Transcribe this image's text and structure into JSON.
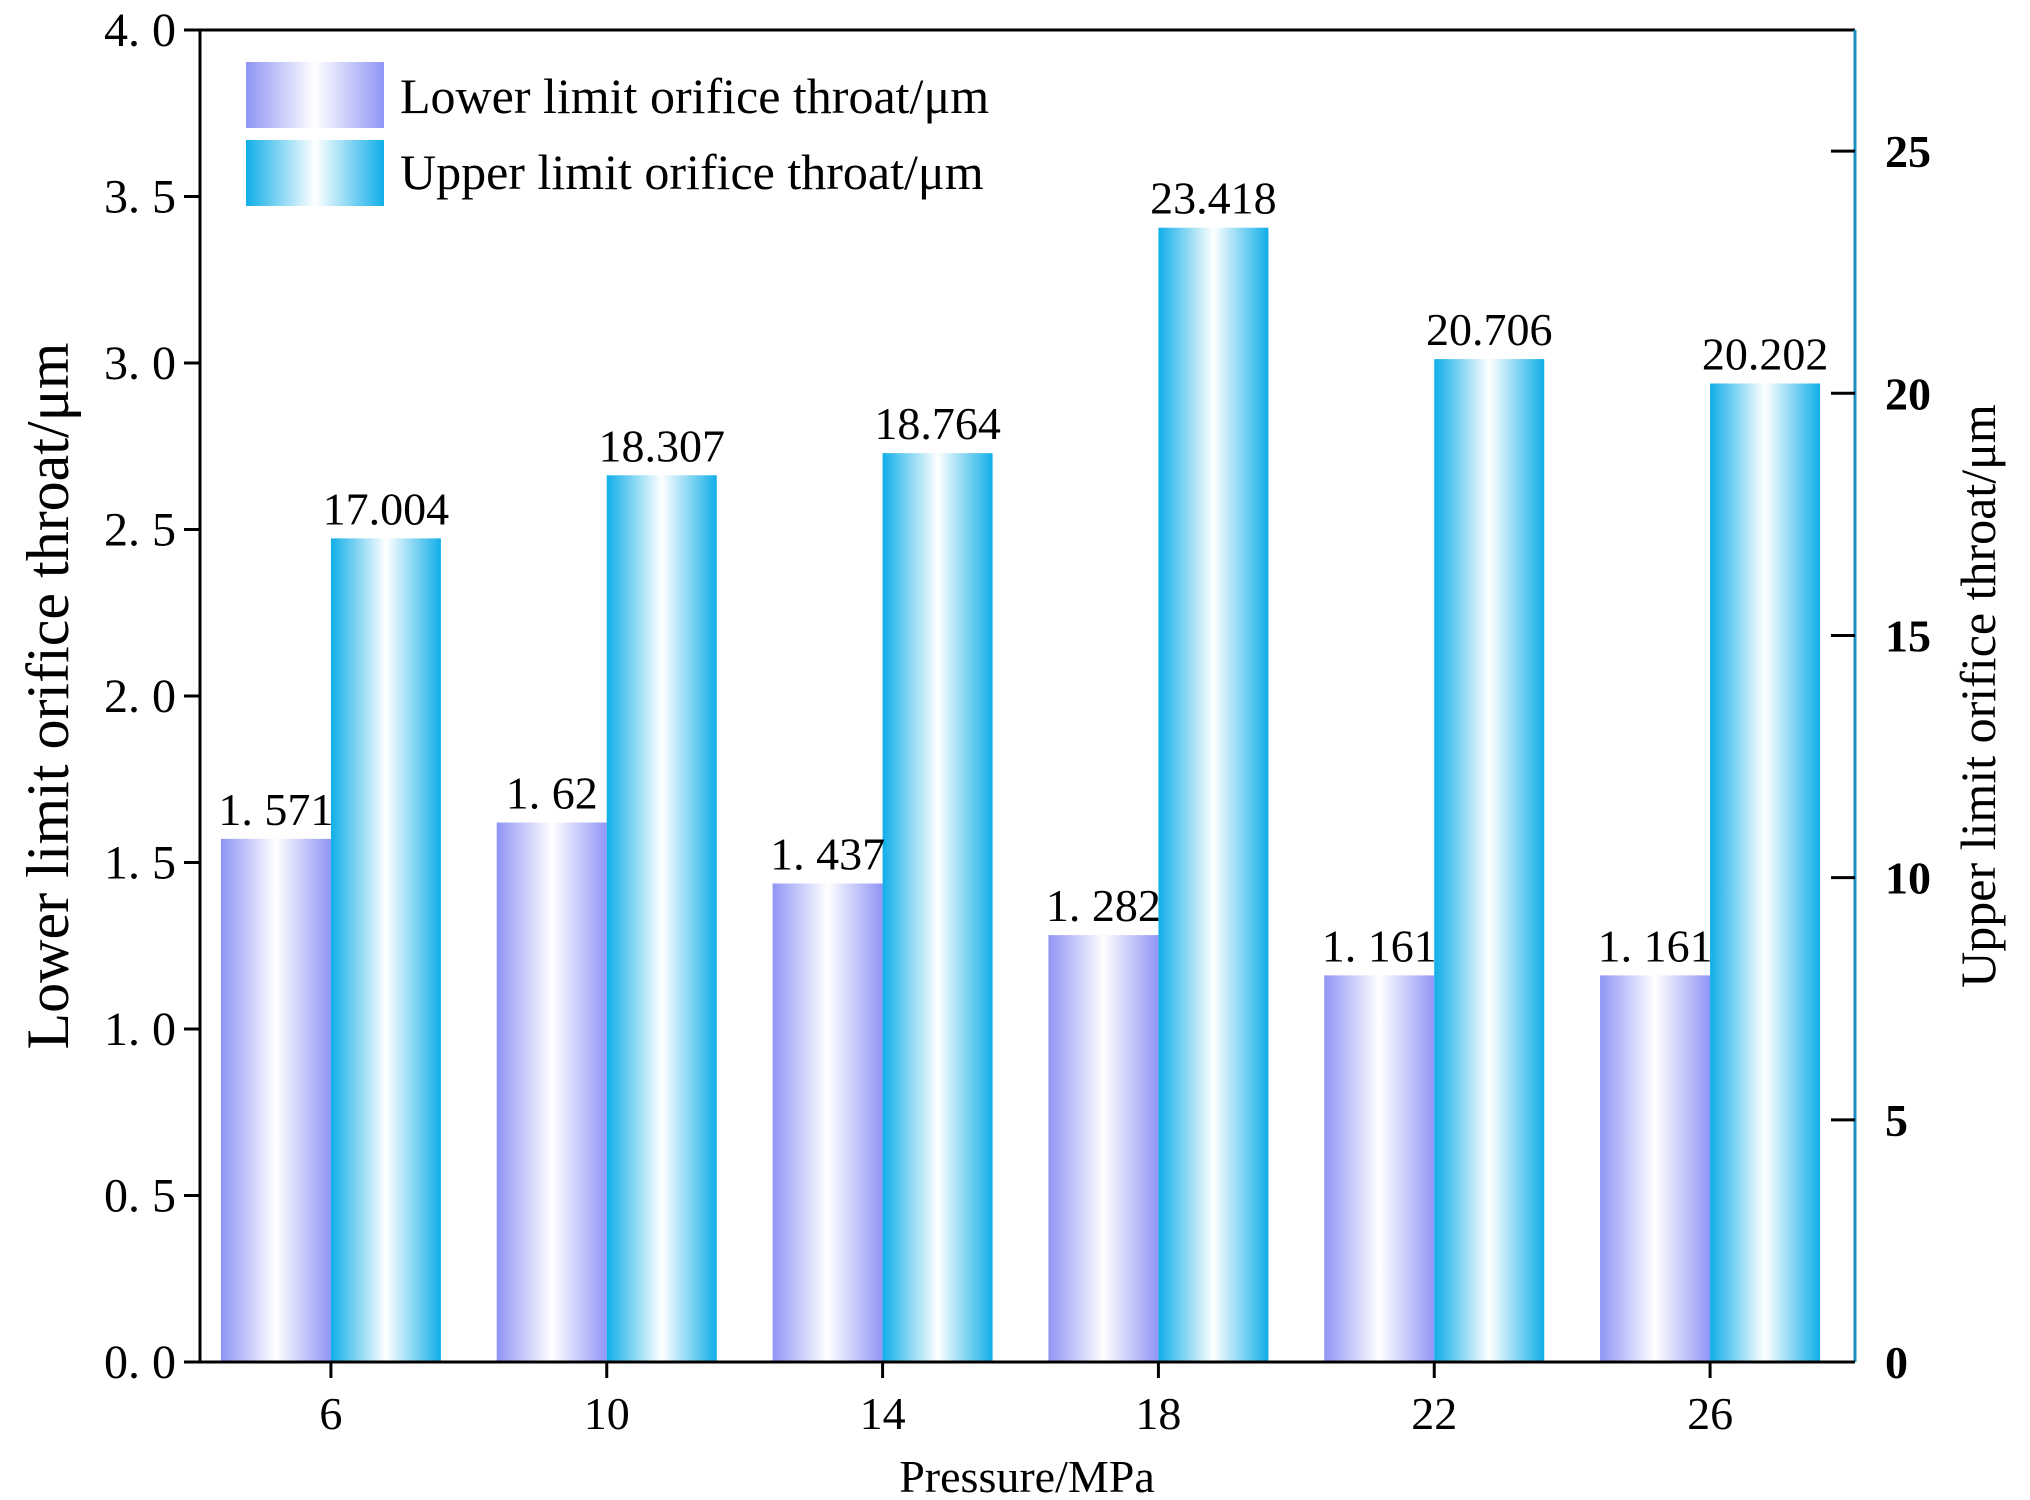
{
  "chart_data": {
    "type": "bar",
    "categories": [
      "6",
      "10",
      "14",
      "18",
      "22",
      "26"
    ],
    "xlabel": "Pressure/MPa",
    "series": [
      {
        "name": "Lower limit orifice throat/μm",
        "axis": "left",
        "values": [
          1.571,
          1.62,
          1.437,
          1.282,
          1.161,
          1.161
        ],
        "labels": [
          "1. 571",
          "1. 62",
          "1. 437",
          "1. 282",
          "1. 161",
          "1. 161"
        ],
        "color": "#8f95f5"
      },
      {
        "name": "Upper limit orifice throat/μm",
        "axis": "right",
        "values": [
          17.004,
          18.307,
          18.764,
          23.418,
          20.706,
          20.202
        ],
        "labels": [
          "17.004",
          "18.307",
          "18.764",
          "23.418",
          "20.706",
          "20.202"
        ],
        "color": "#10aee8"
      }
    ],
    "y_left": {
      "label": "Lower limit orifice throat/μm",
      "ylim": [
        0,
        4.0
      ],
      "ticks": [
        0,
        0.5,
        1.0,
        1.5,
        2.0,
        2.5,
        3.0,
        3.5,
        4.0
      ],
      "tick_labels": [
        "0. 0",
        "0. 5",
        "1. 0",
        "1. 5",
        "2. 0",
        "2. 5",
        "3. 0",
        "3. 5",
        "4. 0"
      ]
    },
    "y_right": {
      "label": "Upper limit orifice throat/μm",
      "ylim": [
        0,
        27.5
      ],
      "ticks": [
        0,
        5,
        10,
        15,
        20,
        25
      ],
      "tick_labels": [
        "0",
        "5",
        "10",
        "15",
        "20",
        "25"
      ]
    },
    "legend": "top-left",
    "grid": false
  }
}
